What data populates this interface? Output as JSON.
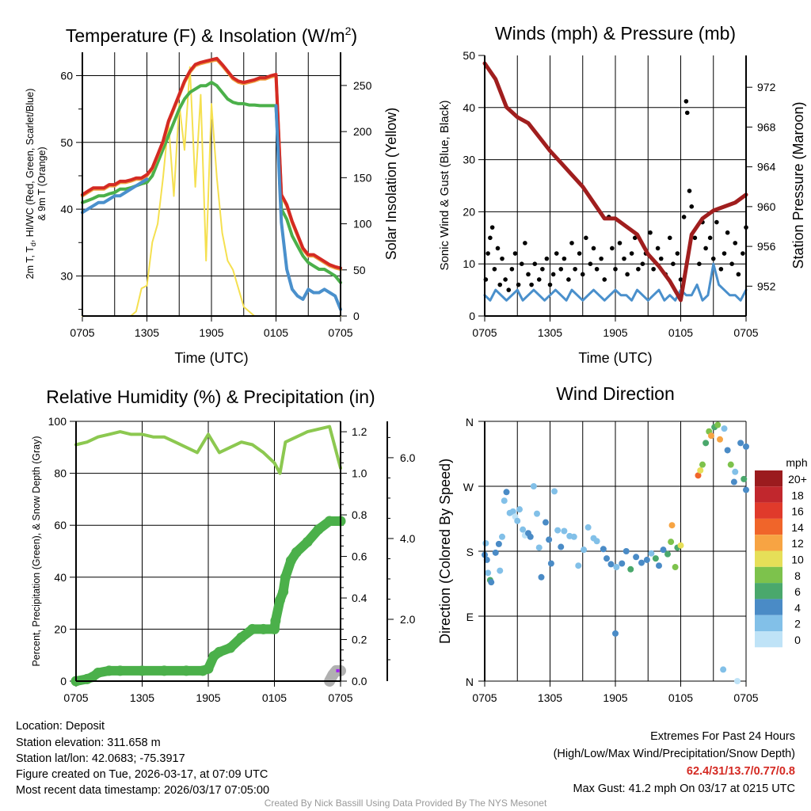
{
  "colors": {
    "red": "#d42a23",
    "orange": "#f0a040",
    "green": "#4bb04a",
    "blue": "#4a90cc",
    "yellow": "#f5e050",
    "maroon": "#a01e1e",
    "rh": "#8cc850",
    "precip": "#4bb04a",
    "snow": "#b0b0b0",
    "purple": "#a020f0",
    "black": "#000000"
  },
  "chart_data": [
    {
      "type": "line",
      "title": "Temperature (F) & Insolation (W/m",
      "title_sup": "2",
      "xlabel": "Time (UTC)",
      "ylabel_line1_a": "2m T, T",
      "ylabel_line1_sub": "d",
      "ylabel_line1_b": ", HI/WC (Red, Green, Scarlet/Blue)",
      "ylabel_line2": "& 9m T (Orange)",
      "y2label": "Solar Insolation (Yellow)",
      "x_hours_step": 0.5,
      "xticks": [
        "0705",
        "1305",
        "1905",
        "0105",
        "0705"
      ],
      "ylim": [
        24,
        63.5
      ],
      "yticks": [
        "30",
        "40",
        "50",
        "60"
      ],
      "y2lim": [
        0,
        286
      ],
      "y2ticks": [
        "0",
        "50",
        "100",
        "150",
        "200",
        "250"
      ],
      "series": [
        {
          "name": "2m T (Red)",
          "values": [
            42,
            42.5,
            43,
            43,
            43,
            43.5,
            43.5,
            44,
            44,
            44.2,
            44.5,
            44.5,
            45,
            46,
            48,
            50,
            53,
            55,
            57,
            59,
            60.5,
            61.5,
            61.8,
            62,
            62.2,
            62.4,
            61.5,
            60.5,
            59.5,
            59,
            58.8,
            59,
            59.2,
            59.5,
            59.5,
            59.8,
            60,
            42,
            40.5,
            38,
            36,
            34,
            33,
            33,
            32.5,
            32,
            31.5,
            31.2,
            31
          ]
        },
        {
          "name": "Td (Green)",
          "values": [
            41,
            41.3,
            41.6,
            42,
            42,
            42.3,
            42.5,
            43,
            43,
            43.2,
            43.5,
            43.8,
            44,
            45,
            47,
            49,
            51,
            53,
            55,
            56.5,
            57.5,
            58,
            58.5,
            58.5,
            59,
            58.5,
            57.5,
            56.5,
            56,
            55.8,
            55.8,
            55.6,
            55.6,
            55.5,
            55.5,
            55.5,
            55.5,
            40,
            38.5,
            36,
            34.5,
            33,
            32,
            31.5,
            31,
            31,
            30.5,
            30,
            29
          ]
        },
        {
          "name": "HI/WC (Blue)",
          "values": [
            39.5,
            40,
            40.5,
            41,
            41,
            41.5,
            42,
            42,
            42.5,
            43,
            43.5,
            44,
            44.5,
            null,
            null,
            null,
            null,
            null,
            null,
            null,
            null,
            null,
            null,
            null,
            null,
            null,
            null,
            null,
            null,
            null,
            null,
            null,
            null,
            null,
            null,
            null,
            55.5,
            38,
            31,
            28,
            27,
            26.5,
            28,
            27.5,
            27.5,
            28,
            27.5,
            27,
            25
          ]
        },
        {
          "name": "Solar Insolation (Yellow)",
          "axis": "y2",
          "values": [
            0,
            0,
            0,
            0,
            0,
            0,
            0,
            0,
            0,
            0,
            5,
            30,
            33,
            80,
            100,
            150,
            210,
            130,
            230,
            180,
            270,
            140,
            240,
            60,
            230,
            150,
            90,
            60,
            50,
            30,
            10,
            5,
            0,
            0,
            0,
            0,
            0,
            0,
            0,
            0,
            0,
            0,
            0,
            0,
            0,
            0,
            0,
            0,
            0
          ]
        }
      ]
    },
    {
      "type": "line",
      "title": "Winds (mph) & Pressure (mb)",
      "xlabel": "Time (UTC)",
      "ylabel": "Sonic Wind & Gust (Blue, Black)",
      "y2label": "Station Pressure (Maroon)",
      "xticks": [
        "0705",
        "1305",
        "1905",
        "0105",
        "0705"
      ],
      "ylim": [
        0,
        50
      ],
      "yticks": [
        "0",
        "10",
        "20",
        "30",
        "40",
        "50"
      ],
      "y2lim": [
        949,
        975.2
      ],
      "y2ticks": [
        "952",
        "956",
        "960",
        "964",
        "968",
        "972"
      ],
      "pressure_hourly": [
        974.4,
        972.8,
        970,
        969,
        968.4,
        967,
        965.6,
        964.4,
        963.2,
        962,
        960.4,
        958.8,
        958.8,
        958,
        957.2,
        955.2,
        954,
        952.5,
        950.6,
        957.2,
        958.8,
        959.6,
        960,
        960.4,
        961.2
      ],
      "wind_halfhourly": [
        4,
        3,
        5,
        4,
        3,
        4,
        5,
        3,
        4,
        5,
        4,
        3,
        4,
        5,
        4,
        3,
        5,
        4,
        3,
        4,
        5,
        4,
        3,
        4,
        5,
        4,
        4,
        3,
        5,
        4,
        3,
        4,
        5,
        3,
        4,
        3,
        5,
        4,
        4,
        6,
        3,
        4,
        10,
        6,
        5,
        4,
        4,
        3,
        5
      ],
      "gusts": [
        [
          0.1,
          7
        ],
        [
          0.3,
          12
        ],
        [
          0.5,
          15
        ],
        [
          0.7,
          17
        ],
        [
          0.9,
          9
        ],
        [
          1.2,
          13
        ],
        [
          1.4,
          6
        ],
        [
          1.6,
          11
        ],
        [
          1.9,
          7
        ],
        [
          2.2,
          5
        ],
        [
          2.5,
          9
        ],
        [
          2.8,
          12
        ],
        [
          3.1,
          6
        ],
        [
          3.4,
          10
        ],
        [
          3.7,
          14
        ],
        [
          4,
          8
        ],
        [
          4.3,
          6
        ],
        [
          4.6,
          10
        ],
        [
          5,
          7
        ],
        [
          5.3,
          9
        ],
        [
          5.7,
          11
        ],
        [
          6,
          6
        ],
        [
          6.3,
          8
        ],
        [
          6.6,
          12
        ],
        [
          7,
          9
        ],
        [
          7.3,
          11
        ],
        [
          7.7,
          7
        ],
        [
          8,
          14
        ],
        [
          8.3,
          9
        ],
        [
          8.7,
          12
        ],
        [
          9,
          8
        ],
        [
          9.3,
          15
        ],
        [
          9.7,
          10
        ],
        [
          10,
          13
        ],
        [
          10.3,
          9
        ],
        [
          10.7,
          11
        ],
        [
          11,
          7
        ],
        [
          11.4,
          19
        ],
        [
          11.7,
          13
        ],
        [
          12,
          9
        ],
        [
          12.4,
          14
        ],
        [
          12.8,
          11
        ],
        [
          13.1,
          8
        ],
        [
          13.5,
          12
        ],
        [
          13.8,
          15
        ],
        [
          14.1,
          9
        ],
        [
          14.5,
          10
        ],
        [
          14.8,
          12
        ],
        [
          15.2,
          16
        ],
        [
          15.5,
          9
        ],
        [
          15.9,
          13
        ],
        [
          16.2,
          11
        ],
        [
          16.6,
          8
        ],
        [
          17,
          15
        ],
        [
          17.3,
          10
        ],
        [
          17.7,
          12
        ],
        [
          18,
          7
        ],
        [
          18.3,
          19
        ],
        [
          18.5,
          41.2
        ],
        [
          18.6,
          39
        ],
        [
          18.8,
          24
        ],
        [
          19,
          21
        ],
        [
          19.3,
          15
        ],
        [
          19.7,
          10
        ],
        [
          20,
          18
        ],
        [
          20.3,
          13
        ],
        [
          20.7,
          15
        ],
        [
          21,
          11
        ],
        [
          21.3,
          18
        ],
        [
          21.7,
          9
        ],
        [
          22,
          12
        ],
        [
          22.3,
          16
        ],
        [
          22.7,
          10
        ],
        [
          23,
          14
        ],
        [
          23.3,
          8
        ],
        [
          23.7,
          12
        ],
        [
          24,
          17
        ]
      ]
    },
    {
      "type": "line",
      "title": "Relative Humidity (%) & Precipitation (in)",
      "ylabel": "Percent, Precipitation (Green), & Snow Depth (Gray)",
      "xticks": [
        "0705",
        "1305",
        "1905",
        "0105",
        "0705"
      ],
      "ylim": [
        0,
        100
      ],
      "yticks": [
        "0",
        "20",
        "40",
        "60",
        "80",
        "100"
      ],
      "y2lim": [
        0,
        1.25
      ],
      "y2ticks": [
        "0.0",
        "0.2",
        "0.4",
        "0.6",
        "0.8",
        "1.0",
        "1.2"
      ],
      "y3ticks": [
        "2.0",
        "4.0",
        "6.0"
      ],
      "rh_hourly": [
        91,
        92,
        94,
        95,
        96,
        95,
        95,
        94,
        94,
        92,
        90,
        88,
        95,
        88,
        90,
        92,
        91,
        88,
        84,
        80,
        92,
        94,
        96,
        97,
        98,
        82
      ],
      "rh_x_hours": [
        0,
        1,
        2,
        3,
        4,
        5,
        6,
        7,
        8,
        9,
        10,
        11,
        12,
        13,
        14,
        15,
        16,
        17,
        18,
        18.5,
        19,
        20,
        21,
        22,
        23,
        24
      ],
      "precip_x_hours": [
        0,
        1,
        1.5,
        2,
        3,
        4,
        6,
        8,
        10,
        11.5,
        12,
        12.5,
        13,
        14,
        15,
        16,
        17,
        18,
        18.1,
        18.5,
        18.8,
        19,
        19.5,
        20,
        21,
        22,
        23,
        24
      ],
      "precip_in": [
        0,
        0.01,
        0.02,
        0.04,
        0.05,
        0.05,
        0.05,
        0.05,
        0.05,
        0.05,
        0.06,
        0.12,
        0.14,
        0.16,
        0.21,
        0.25,
        0.25,
        0.25,
        0.29,
        0.39,
        0.43,
        0.5,
        0.58,
        0.62,
        0.67,
        0.73,
        0.77,
        0.77
      ],
      "snow_depth_points": [
        [
          23.0,
          0.0
        ],
        [
          23.3,
          0.03
        ],
        [
          23.6,
          0.05
        ],
        [
          24,
          0.05
        ]
      ]
    },
    {
      "type": "scatter",
      "title": "Wind Direction",
      "ylabel": "Direction (Colored By Speed)",
      "xticks": [
        "0705",
        "1305",
        "1905",
        "0105",
        "0705"
      ],
      "ylim": [
        0,
        360
      ],
      "yticks": [
        "N",
        "E",
        "S",
        "W",
        "N"
      ],
      "legend_title": "mph",
      "legend": [
        {
          "label": "20+",
          "color": "#9b1b1e"
        },
        {
          "label": "18",
          "color": "#c1272d"
        },
        {
          "label": "16",
          "color": "#e03a2b"
        },
        {
          "label": "14",
          "color": "#f0652a"
        },
        {
          "label": "12",
          "color": "#f7a443"
        },
        {
          "label": "10",
          "color": "#e6df58"
        },
        {
          "label": "8",
          "color": "#7dc24c"
        },
        {
          "label": "6",
          "color": "#4aa86c"
        },
        {
          "label": "4",
          "color": "#4a8bc6"
        },
        {
          "label": "2",
          "color": "#82c0e8"
        },
        {
          "label": "0",
          "color": "#bfe3f7"
        }
      ],
      "points": [
        [
          0,
          175,
          4
        ],
        [
          0.1,
          191,
          2
        ],
        [
          0.2,
          168,
          4
        ],
        [
          0.3,
          150,
          3
        ],
        [
          0.5,
          140,
          6
        ],
        [
          0.6,
          137,
          4
        ],
        [
          1,
          178,
          4
        ],
        [
          1.3,
          190,
          4
        ],
        [
          1.4,
          153,
          2
        ],
        [
          1.6,
          200,
          3
        ],
        [
          1.8,
          250,
          2
        ],
        [
          2,
          262,
          4
        ],
        [
          2.3,
          233,
          2
        ],
        [
          2.6,
          235,
          2
        ],
        [
          2.8,
          228,
          1
        ],
        [
          3,
          222,
          2
        ],
        [
          3.2,
          238,
          2
        ],
        [
          3.5,
          210,
          2
        ],
        [
          3.7,
          202,
          1
        ],
        [
          4,
          205,
          4
        ],
        [
          4.2,
          200,
          4
        ],
        [
          4.5,
          270,
          2
        ],
        [
          4.8,
          232,
          2
        ],
        [
          5,
          185,
          3
        ],
        [
          5.2,
          144,
          4
        ],
        [
          5.6,
          220,
          4
        ],
        [
          5.9,
          196,
          4
        ],
        [
          6.1,
          163,
          4
        ],
        [
          6.4,
          263,
          2
        ],
        [
          6.7,
          209,
          2
        ],
        [
          7,
          186,
          4
        ],
        [
          7.3,
          208,
          2
        ],
        [
          7.8,
          201,
          2
        ],
        [
          8.2,
          200,
          3
        ],
        [
          8.6,
          160,
          2
        ],
        [
          9.1,
          182,
          3
        ],
        [
          9.5,
          213,
          2
        ],
        [
          10,
          198,
          2
        ],
        [
          10.3,
          194,
          3
        ],
        [
          10.9,
          183,
          4
        ],
        [
          11.2,
          170,
          4
        ],
        [
          11.6,
          162,
          4
        ],
        [
          12,
          66,
          4
        ],
        [
          12.1,
          158,
          2
        ],
        [
          12.6,
          163,
          4
        ],
        [
          13,
          180,
          4
        ],
        [
          13.4,
          155,
          6
        ],
        [
          13.9,
          172,
          4
        ],
        [
          14.4,
          164,
          4
        ],
        [
          14.9,
          168,
          4
        ],
        [
          15.3,
          177,
          2
        ],
        [
          15.7,
          170,
          6
        ],
        [
          16,
          160,
          4
        ],
        [
          16.4,
          182,
          4
        ],
        [
          16.8,
          176,
          6
        ],
        [
          17.1,
          193,
          8
        ],
        [
          17.2,
          216,
          13
        ],
        [
          17.5,
          158,
          8
        ],
        [
          17.7,
          185,
          6
        ],
        [
          18,
          188,
          10
        ],
        [
          19.6,
          285,
          14
        ],
        [
          19.8,
          292,
          10
        ],
        [
          20,
          300,
          9
        ],
        [
          20.3,
          330,
          6
        ],
        [
          20.6,
          346,
          8
        ],
        [
          20.8,
          340,
          12
        ],
        [
          21.1,
          352,
          6
        ],
        [
          21.4,
          355,
          8
        ],
        [
          21.6,
          335,
          12
        ],
        [
          21.9,
          16,
          2
        ],
        [
          22,
          350,
          3
        ],
        [
          22.3,
          320,
          5
        ],
        [
          22.6,
          300,
          8
        ],
        [
          22.9,
          276,
          4
        ],
        [
          23,
          290,
          2
        ],
        [
          23.2,
          0,
          0
        ],
        [
          23.5,
          330,
          4
        ],
        [
          23.8,
          280,
          6
        ],
        [
          24,
          265,
          4
        ],
        [
          24,
          325,
          4
        ]
      ]
    }
  ],
  "info": {
    "location": "Location: Deposit",
    "elevation": "Station elevation: 311.658 m",
    "latlon": "Station lat/lon: 42.0683; -75.3917",
    "created": "Figure created on Tue, 2026-03-17, at 07:09 UTC",
    "recent": "Most recent data timestamp: 2026/03/17 07:05:00",
    "extremes_title": "Extremes For Past 24 Hours",
    "extremes_fields": "(High/Low/Max Wind/Precipitation/Snow Depth)",
    "extremes_values": "62.4/31/13.7/0.77/0.8",
    "max_gust": "Max Gust: 41.2 mph On 03/17 at 0215 UTC",
    "credit": "Created By Nick Bassill Using Data Provided By The NYS Mesonet"
  }
}
